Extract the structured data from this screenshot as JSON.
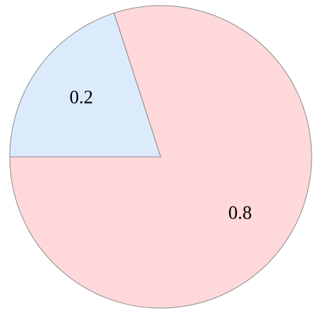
{
  "chart_data": {
    "type": "pie",
    "values": [
      0.2,
      0.8
    ],
    "colors": [
      "#dcebfc",
      "#fed8da"
    ]
  }
}
